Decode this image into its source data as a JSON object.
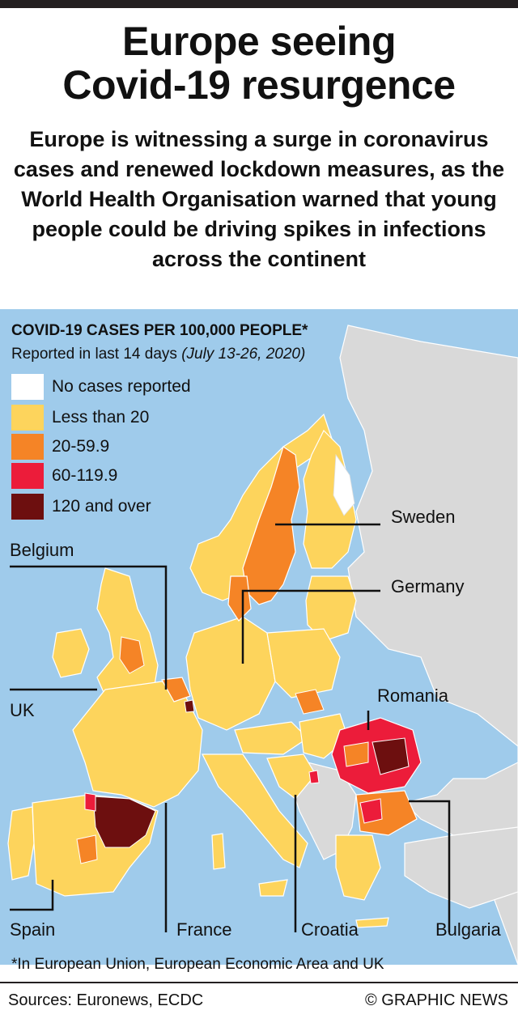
{
  "header": {
    "title_line1": "Europe seeing",
    "title_line2": "Covid-19 resurgence",
    "subtitle": "Europe is witnessing a surge in coronavirus cases and renewed lockdown measures, as the World Health Organisation warned that young people could be driving spikes in infections across the continent"
  },
  "legend": {
    "title": "COVID-19 CASES PER 100,000 PEOPLE*",
    "subtitle_plain": "Reported in last 14 days ",
    "subtitle_italic": "(July 13-26, 2020)",
    "items": [
      {
        "label": "No cases reported",
        "color": "#ffffff"
      },
      {
        "label": "Less than 20",
        "color": "#fdd45c"
      },
      {
        "label": "20-59.9",
        "color": "#f58426"
      },
      {
        "label": "60-119.9",
        "color": "#ec1c3a"
      },
      {
        "label": "120 and over",
        "color": "#6d0f0f"
      }
    ]
  },
  "labels": {
    "sweden": "Sweden",
    "germany": "Germany",
    "romania": "Romania",
    "belgium": "Belgium",
    "uk": "UK",
    "spain": "Spain",
    "france": "France",
    "croatia": "Croatia",
    "bulgaria": "Bulgaria"
  },
  "colors": {
    "sea": "#9fcbeb",
    "non_eu_land": "#d9d9d9",
    "border": "#ffffff"
  },
  "footnote": "*In European Union, European Economic Area and UK",
  "footer": {
    "sources": "Sources: Euronews, ECDC",
    "credit": "© GRAPHIC NEWS"
  }
}
